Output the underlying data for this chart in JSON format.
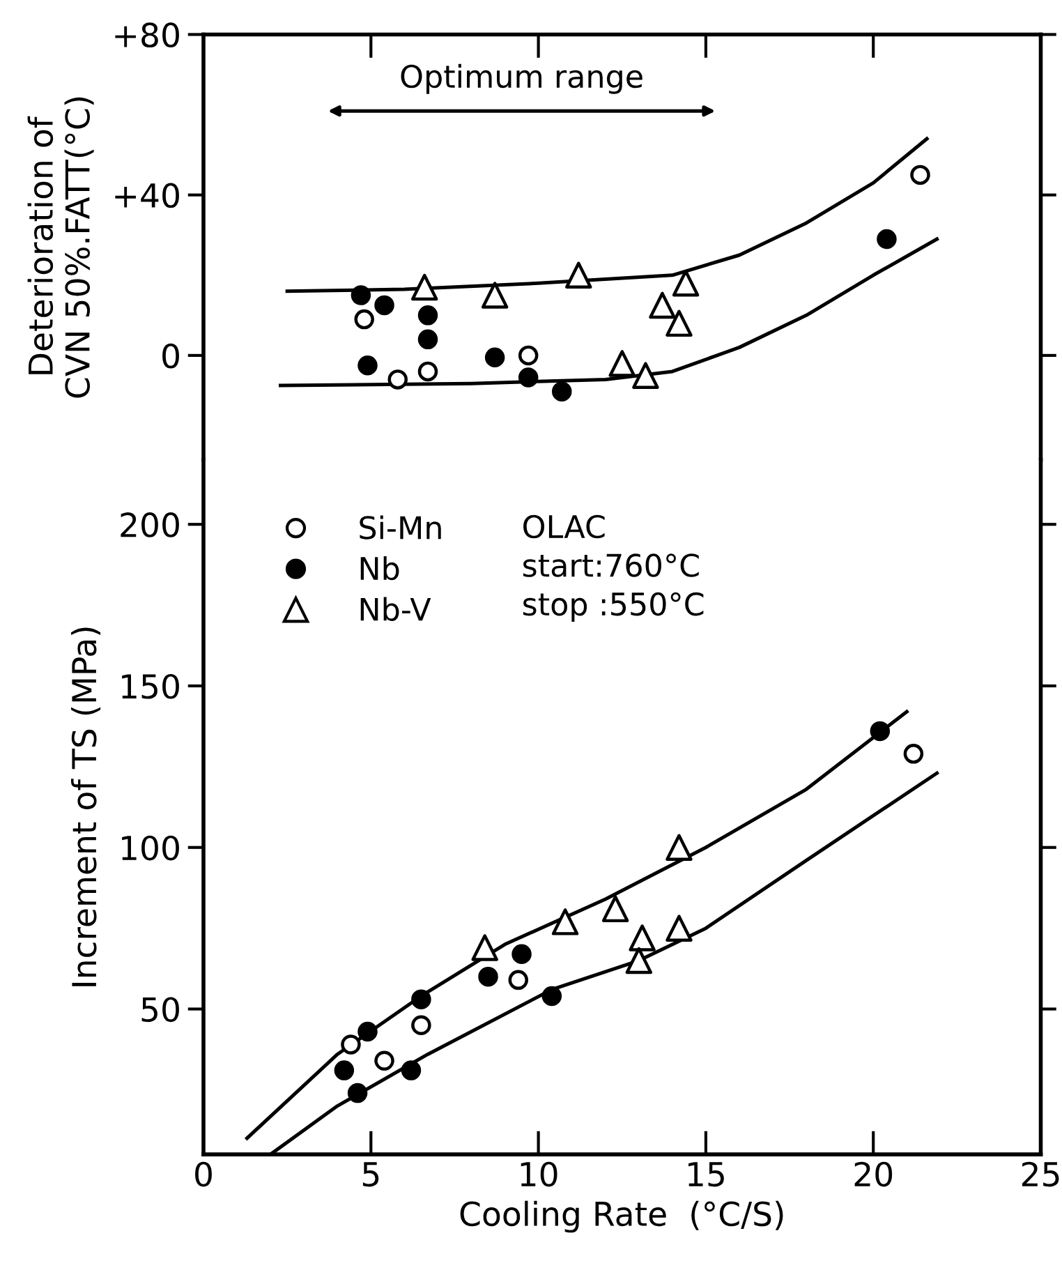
{
  "chart_data": [
    {
      "type": "scatter",
      "ylabel": "Deterioration of\nCVN 50%.FATT(°C)",
      "xlim": [
        0,
        25
      ],
      "xticks": [
        0,
        5,
        10,
        15,
        20,
        25
      ],
      "ylim": [
        -26,
        80
      ],
      "yticks": [
        {
          "value": 80,
          "label": "+80"
        },
        {
          "value": 40,
          "label": "+40"
        },
        0
      ],
      "tick_labels": "y",
      "grid": false,
      "legend": false,
      "annotations": [
        "Optimum range"
      ],
      "series": [
        {
          "marker": "circle",
          "color": "#ffffff",
          "x": [
            4.8,
            5.8,
            6.7,
            9.7,
            21.4
          ],
          "values": [
            9,
            -6,
            -4,
            0,
            45
          ]
        },
        {
          "marker": "circle",
          "color": "#000000",
          "x": [
            4.7,
            5.4,
            6.7,
            6.7,
            4.9,
            8.7,
            9.7,
            10.7,
            20.4
          ],
          "values": [
            15,
            12.5,
            10,
            4,
            -2.5,
            -0.5,
            -5.5,
            -9,
            29
          ]
        },
        {
          "marker": "triangle",
          "color": "#ffffff",
          "x": [
            6.6,
            8.7,
            11.2,
            13.7,
            14.4,
            14.2,
            12.5,
            13.2
          ],
          "values": [
            17,
            15,
            20,
            12.5,
            18,
            8,
            -2,
            -5
          ]
        },
        {
          "type": "line",
          "color": "#000000",
          "x": [
            2.5,
            6,
            10,
            14,
            16,
            18,
            20,
            21.6
          ],
          "values": [
            16,
            16.5,
            18,
            20,
            25,
            33,
            43,
            54
          ]
        },
        {
          "type": "line",
          "color": "#000000",
          "x": [
            2.3,
            8,
            12,
            14,
            16,
            18,
            20,
            21.9
          ],
          "values": [
            -7.5,
            -7,
            -6,
            -4,
            2,
            10,
            20,
            29
          ]
        }
      ]
    },
    {
      "type": "scatter",
      "xlabel": "Cooling Rate  (°C/S)",
      "ylabel": "Increment of TS (MPa)",
      "xlim": [
        0,
        25
      ],
      "xticks": [
        0,
        5,
        10,
        15,
        20,
        25
      ],
      "ylim": [
        5,
        220
      ],
      "yticks": [
        50,
        100,
        150,
        200
      ],
      "grid": false,
      "legend": "top left",
      "annotations": [
        "OLAC",
        "start:760°C",
        "stop :550°C"
      ],
      "series": [
        {
          "name": "Si-Mn",
          "marker": "circle",
          "color": "#ffffff",
          "x": [
            4.4,
            5.4,
            6.5,
            9.4,
            21.2
          ],
          "values": [
            39,
            34,
            45,
            59,
            129
          ]
        },
        {
          "name": "Nb",
          "marker": "circle",
          "color": "#000000",
          "x": [
            4.9,
            4.2,
            4.6,
            6.2,
            6.5,
            8.5,
            9.5,
            10.4,
            20.2
          ],
          "values": [
            43,
            31,
            24,
            31,
            53,
            60,
            67,
            54,
            136
          ]
        },
        {
          "name": "Nb-V",
          "marker": "triangle",
          "color": "#ffffff",
          "x": [
            8.4,
            10.8,
            12.3,
            13.1,
            13.0,
            14.2,
            14.2
          ],
          "values": [
            69,
            77,
            81,
            72,
            65,
            75,
            100
          ]
        },
        {
          "type": "line",
          "color": "#000000",
          "x": [
            1.3,
            4,
            6.5,
            9,
            12,
            15,
            18,
            21
          ],
          "values": [
            10,
            36,
            54,
            70,
            84,
            100,
            118,
            142
          ]
        },
        {
          "type": "line",
          "color": "#000000",
          "x": [
            2,
            4,
            6.7,
            10.4,
            13,
            15,
            18,
            21.9
          ],
          "values": [
            5,
            20,
            36,
            56,
            65,
            75,
            96,
            123
          ]
        }
      ]
    }
  ]
}
